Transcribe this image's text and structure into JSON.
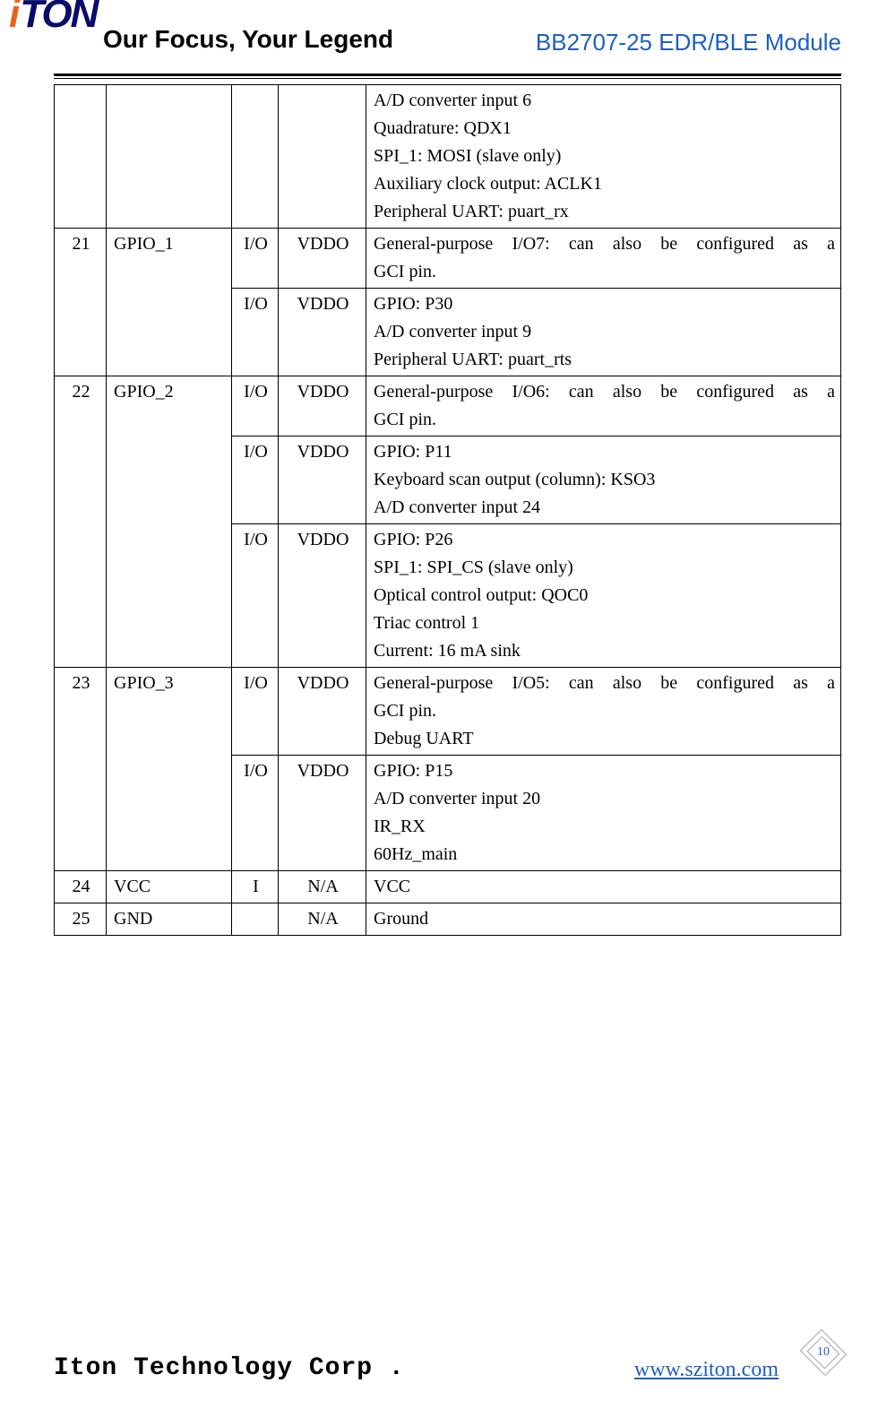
{
  "logo": {
    "i": "i",
    "ton": "TON"
  },
  "header": {
    "tagline": "Our Focus, Your Legend",
    "product": "BB2707-25 EDR/BLE Module"
  },
  "footer": {
    "corp": "Iton Technology Corp .",
    "url": "www.sziton.com",
    "page": "10"
  },
  "table": {
    "columns": {
      "pin_width": 58,
      "name_width": 140,
      "io_width": 52,
      "dom_width": 98
    },
    "rows": [
      {
        "pin": "",
        "name": "",
        "sub": [
          {
            "io": "",
            "dom": "",
            "desc_lines": [
              "A/D converter input 6",
              "Quadrature: QDX1",
              "SPI_1: MOSI (slave only)",
              "Auxiliary clock output: ACLK1",
              "Peripheral UART: puart_rx"
            ]
          }
        ]
      },
      {
        "pin": "21",
        "name": "GPIO_1",
        "sub": [
          {
            "io": "I/O",
            "dom": "VDDO",
            "desc_first_justify": "General-purpose I/O7: can also be configured as a",
            "desc_rest": [
              "GCI pin."
            ]
          },
          {
            "io": "I/O",
            "dom": "VDDO",
            "desc_lines": [
              "GPIO: P30",
              "A/D converter input 9",
              "Peripheral UART: puart_rts"
            ]
          }
        ]
      },
      {
        "pin": "22",
        "name": "GPIO_2",
        "sub": [
          {
            "io": "I/O",
            "dom": "VDDO",
            "desc_first_justify": "General-purpose I/O6: can also be configured as a",
            "desc_rest": [
              "GCI pin."
            ]
          },
          {
            "io": "I/O",
            "dom": "VDDO",
            "desc_lines": [
              "GPIO: P11",
              "Keyboard scan output (column): KSO3",
              "A/D converter input 24"
            ]
          },
          {
            "io": "I/O",
            "dom": "VDDO",
            "desc_lines": [
              "GPIO: P26",
              "SPI_1: SPI_CS (slave only)",
              "Optical control output: QOC0",
              "Triac control 1",
              "Current: 16 mA sink"
            ]
          }
        ]
      },
      {
        "pin": "23",
        "name": "GPIO_3",
        "sub": [
          {
            "io": "I/O",
            "dom": "VDDO",
            "desc_first_justify": "General-purpose I/O5: can also be configured as a",
            "desc_rest": [
              "GCI pin.",
              "Debug UART"
            ]
          },
          {
            "io": "I/O",
            "dom": "VDDO",
            "desc_lines": [
              "GPIO: P15",
              "A/D converter input 20",
              "IR_RX",
              "60Hz_main"
            ]
          }
        ]
      },
      {
        "pin": "24",
        "name": "VCC",
        "sub": [
          {
            "io": "I",
            "dom": "N/A",
            "desc_lines": [
              "VCC"
            ]
          }
        ]
      },
      {
        "pin": "25",
        "name": "GND",
        "sub": [
          {
            "io": "",
            "dom": "N/A",
            "desc_lines": [
              "Ground"
            ]
          }
        ]
      }
    ]
  }
}
